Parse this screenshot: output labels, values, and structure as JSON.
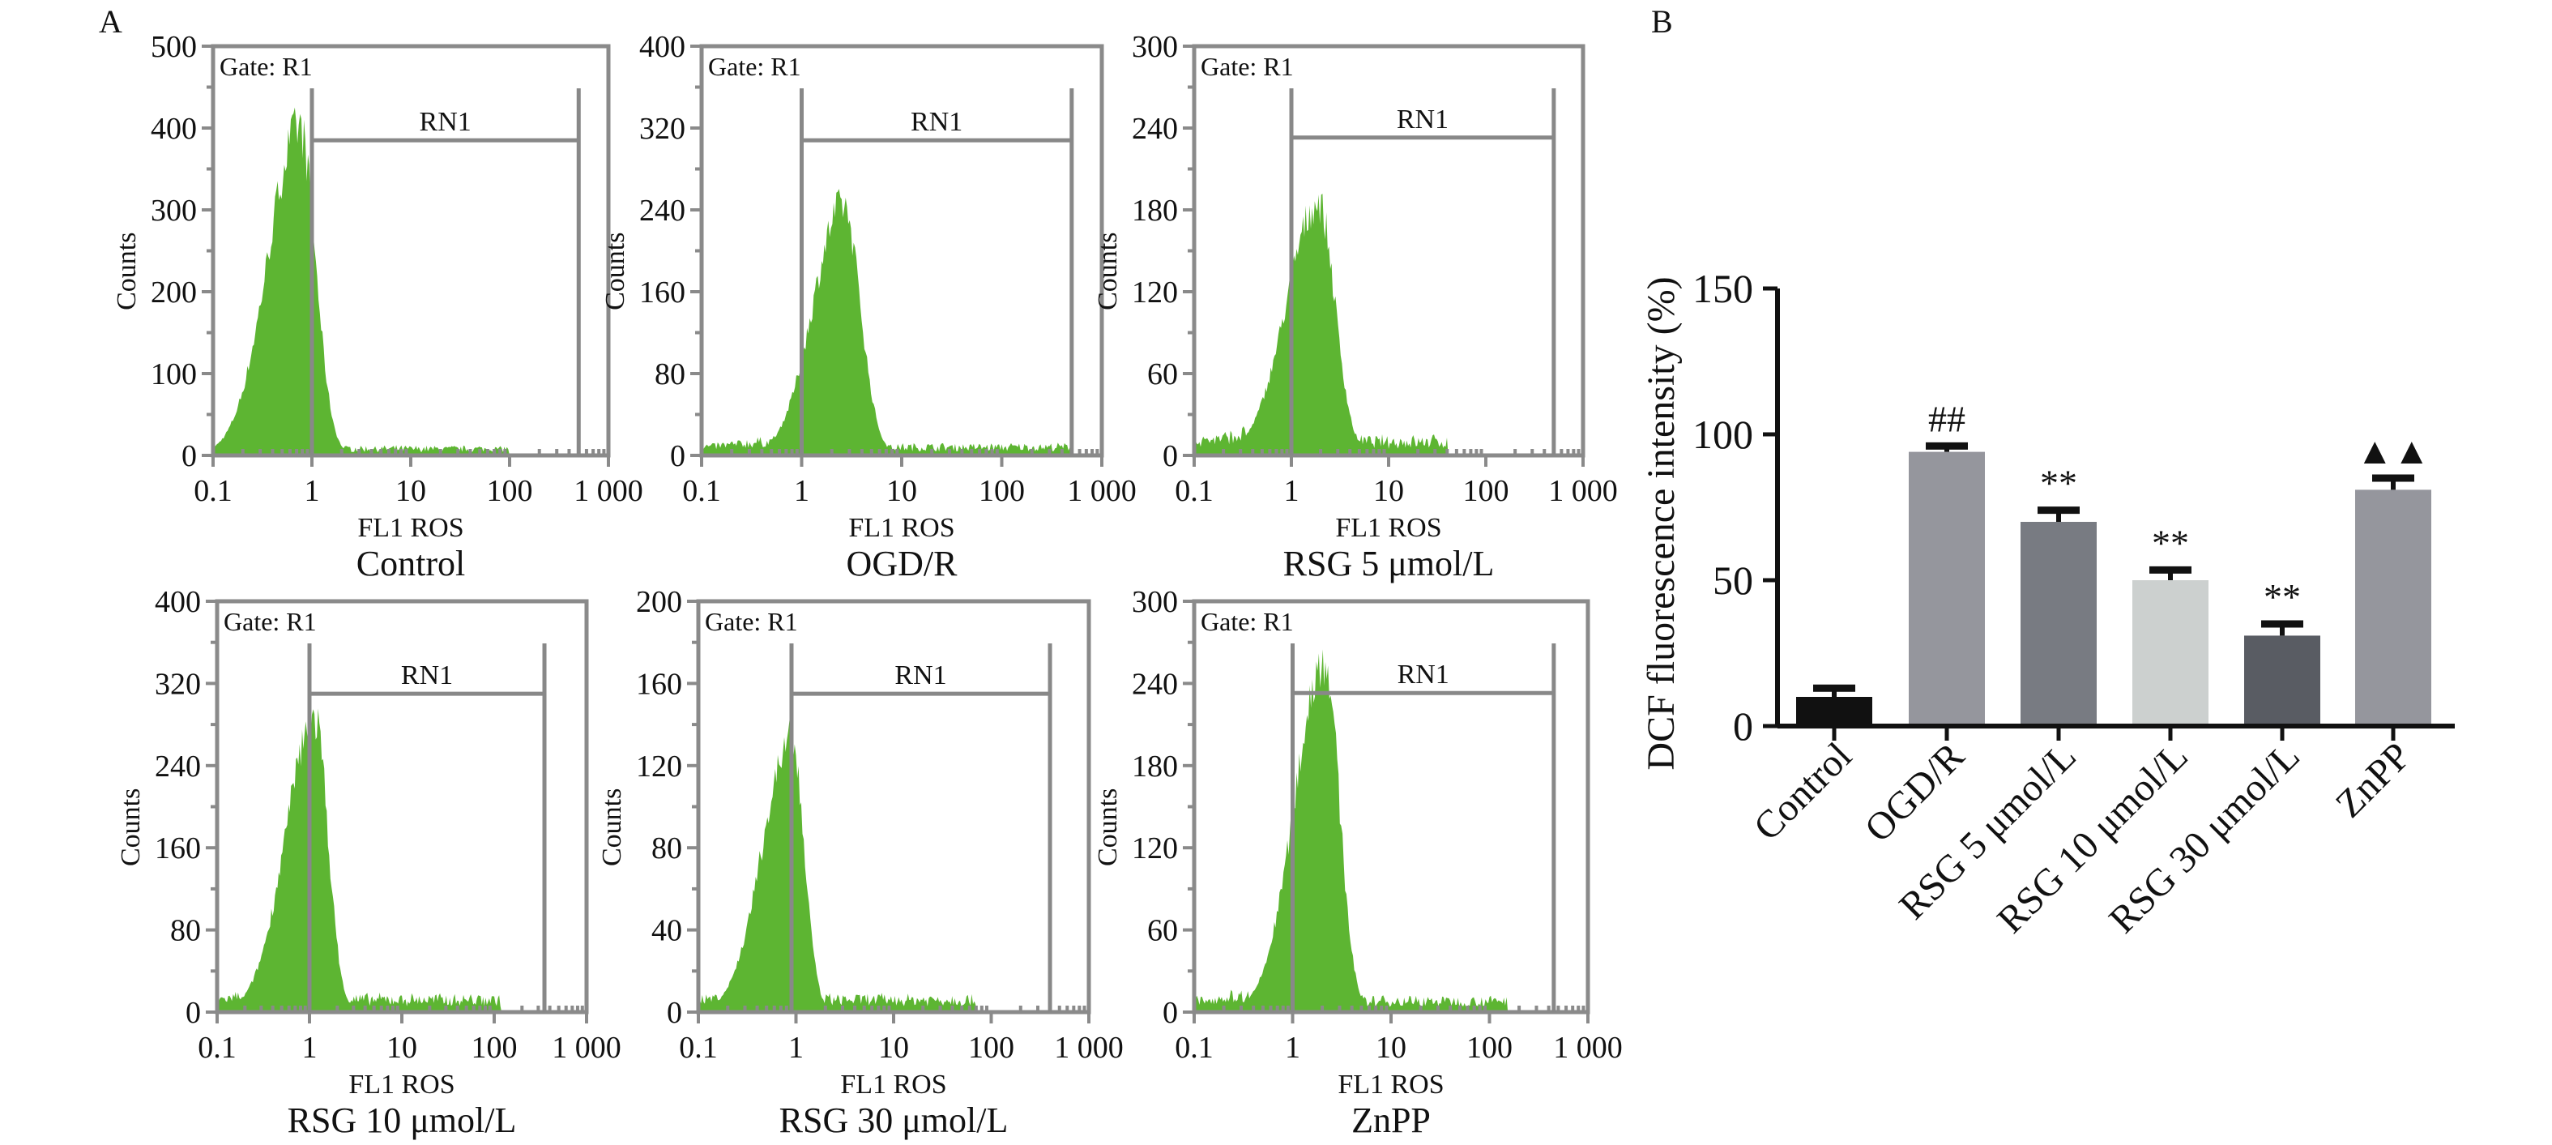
{
  "figure": {
    "panel_a_letter": "A",
    "panel_b_letter": "B"
  },
  "chart_data": [
    {
      "type": "histogram-grid",
      "panel": "A",
      "xlabel": "FL1 ROS",
      "ylabel": "Counts",
      "x_scale": "log",
      "x_range": [
        0.1,
        1000
      ],
      "x_ticks": [
        "0.1",
        "1",
        "10",
        "100",
        "1 000"
      ],
      "x_tick_values": [
        0.1,
        1,
        10,
        100,
        1000
      ],
      "gate_label": "Gate: R1",
      "marker_label": "RN1",
      "marker_range": [
        1,
        500
      ],
      "fill_color": "#5db532",
      "plots": [
        {
          "title": "Control",
          "ylim": [
            0,
            500
          ],
          "y_ticks": [
            0,
            100,
            200,
            300,
            400,
            500
          ],
          "marker_level": 385,
          "marker_range": [
            1,
            500
          ],
          "peak_x": 0.75,
          "peak_y": 400,
          "width_left": 0.32,
          "width_right": 0.16,
          "tail_level": 8,
          "tail_end": 100
        },
        {
          "title": "OGD/R",
          "ylim": [
            0,
            400
          ],
          "y_ticks": [
            0,
            80,
            160,
            240,
            320,
            400
          ],
          "marker_level": 308,
          "marker_range": [
            1,
            500
          ],
          "peak_x": 2.6,
          "peak_y": 245,
          "width_left": 0.3,
          "width_right": 0.17,
          "tail_level": 8,
          "tail_end": 500
        },
        {
          "title": "RSG 5 μmol/L",
          "ylim": [
            0,
            300
          ],
          "y_ticks": [
            0,
            60,
            120,
            180,
            240,
            300
          ],
          "marker_level": 233,
          "marker_range": [
            1,
            500
          ],
          "peak_x": 1.9,
          "peak_y": 185,
          "width_left": 0.33,
          "width_right": 0.17,
          "tail_level": 10,
          "tail_end": 40
        },
        {
          "title": "RSG 10 μmol/L",
          "ylim": [
            0,
            400
          ],
          "y_ticks": [
            0,
            80,
            160,
            240,
            320,
            400
          ],
          "marker_level": 310,
          "marker_range": [
            1,
            350
          ],
          "peak_x": 1.15,
          "peak_y": 285,
          "width_left": 0.32,
          "width_right": 0.14,
          "tail_level": 12,
          "tail_end": 120
        },
        {
          "title": "RSG 30 μmol/L",
          "ylim": [
            0,
            200
          ],
          "y_ticks": [
            0,
            40,
            80,
            120,
            160,
            200
          ],
          "marker_level": 155,
          "marker_range": [
            0.9,
            400
          ],
          "peak_x": 0.9,
          "peak_y": 132,
          "width_left": 0.3,
          "width_right": 0.13,
          "tail_level": 6,
          "tail_end": 70
        },
        {
          "title": "ZnPP",
          "ylim": [
            0,
            300
          ],
          "y_ticks": [
            0,
            60,
            120,
            180,
            240,
            300
          ],
          "marker_level": 233,
          "marker_range": [
            1,
            450
          ],
          "peak_x": 2.1,
          "peak_y": 258,
          "width_left": 0.3,
          "width_right": 0.15,
          "tail_level": 8,
          "tail_end": 150
        }
      ]
    },
    {
      "type": "bar",
      "panel": "B",
      "title": "",
      "xlabel": "",
      "ylabel": "DCF fluorescence intensity (%)",
      "ylim": [
        0,
        150
      ],
      "y_ticks": [
        0,
        50,
        100,
        150
      ],
      "categories": [
        "Control",
        "OGD/R",
        "RSG 5 μmol/L",
        "RSG 10 μmol/L",
        "RSG 30 μmol/L",
        "ZnPP"
      ],
      "values": [
        10,
        94,
        70,
        50,
        31,
        81
      ],
      "errors": [
        3,
        2,
        4,
        3.5,
        4,
        4
      ],
      "annotations": [
        "",
        "##",
        "**",
        "**",
        "**",
        "▲▲"
      ],
      "colors": [
        "#111111",
        "#95969d",
        "#787b82",
        "#ccd0cf",
        "#595c63",
        "#95969d"
      ]
    }
  ]
}
